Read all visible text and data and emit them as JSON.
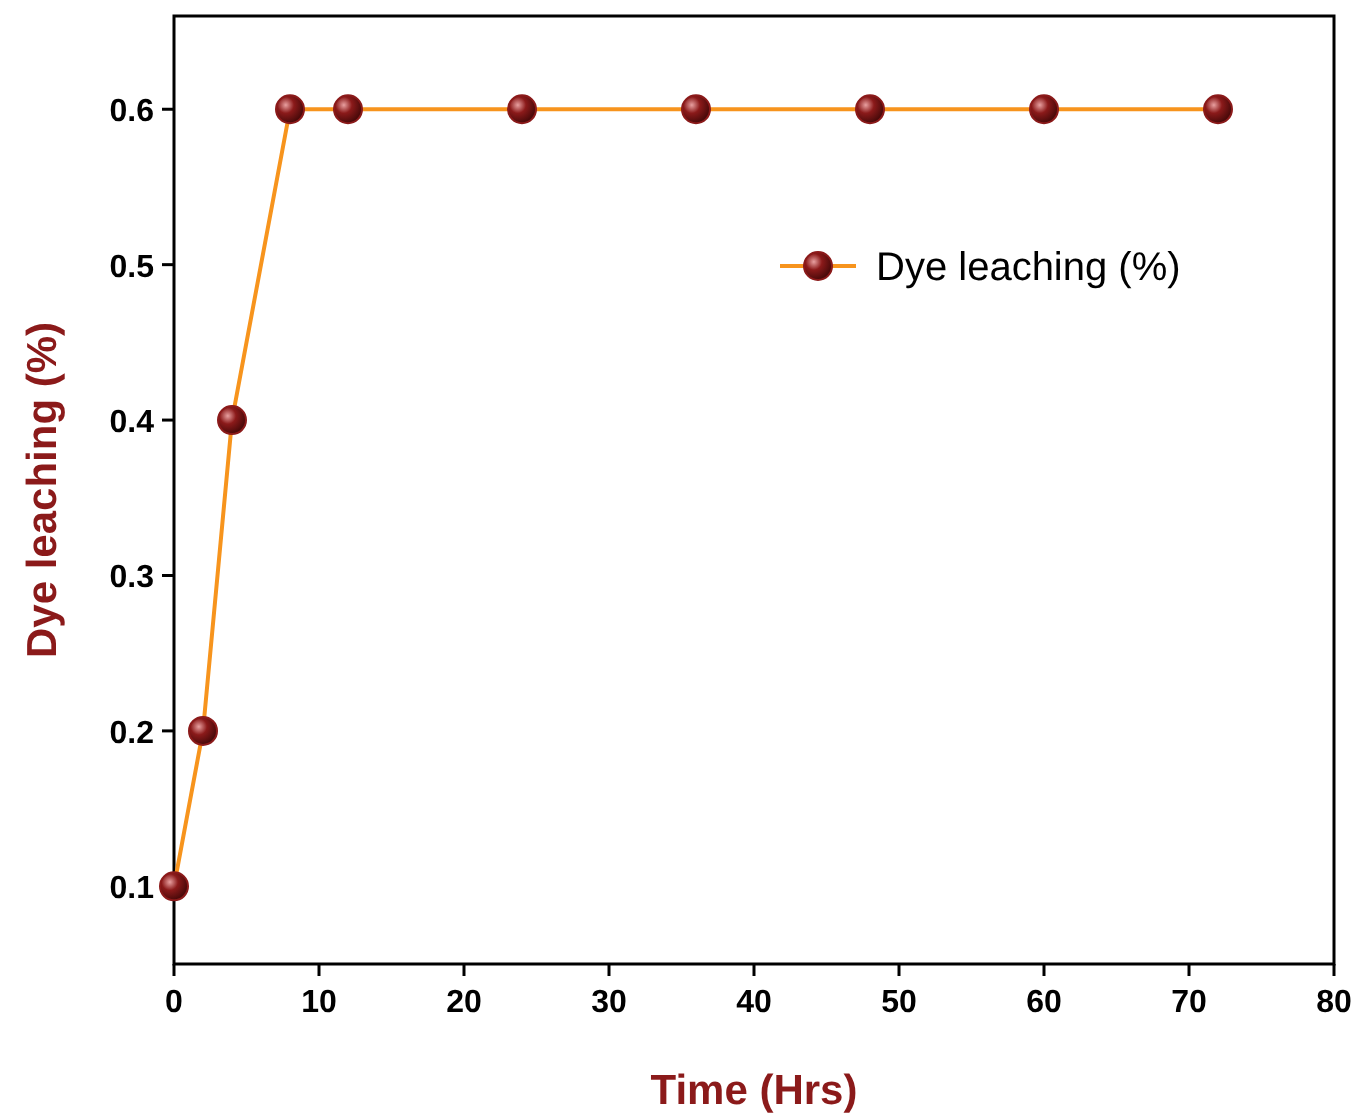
{
  "chart_data": {
    "type": "line",
    "xlabel": "Time (Hrs)",
    "ylabel": "Dye leaching (%)",
    "x": [
      0,
      2,
      4,
      8,
      12,
      24,
      36,
      48,
      60,
      72
    ],
    "series": [
      {
        "name": "Dye leaching (%)",
        "color": "#f7941d",
        "colors": [
          "#8b1a1a",
          "#8b1a1a",
          "#8b1a1a",
          "#8b1a1a",
          "#8b1a1a",
          "#8b1a1a",
          "#8b1a1a",
          "#8b1a1a",
          "#8b1a1a",
          "#8b1a1a"
        ],
        "values": [
          0.1,
          0.2,
          0.4,
          0.6,
          0.6,
          0.6,
          0.6,
          0.6,
          0.6,
          0.6
        ]
      }
    ],
    "xlim": [
      0,
      80
    ],
    "xticks": [
      0,
      10,
      20,
      30,
      40,
      50,
      60,
      70,
      80
    ],
    "ylim": [
      0.05,
      0.66
    ],
    "yticks": [
      0.1,
      0.2,
      0.3,
      0.4,
      0.5,
      0.6
    ],
    "marker": "circle",
    "line_style": "solid",
    "legend": "top right",
    "grid": false
  }
}
